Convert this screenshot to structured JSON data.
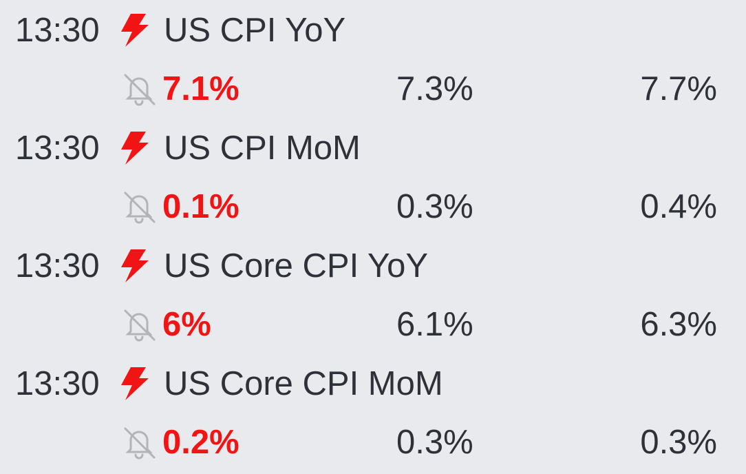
{
  "events": [
    {
      "time": "13:30",
      "title": "US CPI YoY",
      "actual": "7.1%",
      "forecast": "7.3%",
      "previous": "7.7%"
    },
    {
      "time": "13:30",
      "title": "US CPI MoM",
      "actual": "0.1%",
      "forecast": "0.3%",
      "previous": "0.4%"
    },
    {
      "time": "13:30",
      "title": "US Core CPI YoY",
      "actual": "6%",
      "forecast": "6.1%",
      "previous": "6.3%"
    },
    {
      "time": "13:30",
      "title": "US Core CPI MoM",
      "actual": "0.2%",
      "forecast": "0.3%",
      "previous": "0.3%"
    }
  ]
}
